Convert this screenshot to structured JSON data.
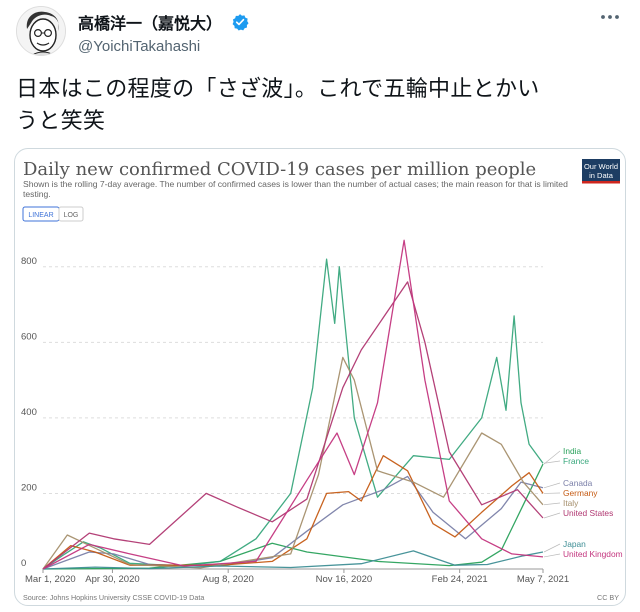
{
  "tweet": {
    "display_name": "高橋洋一（嘉悦大）",
    "handle": "@YoichiTakahashi",
    "text_line1": "日本はこの程度の「さざ波」。これで五輪中止とかい",
    "text_line2": "うと笑笑"
  },
  "icons": {
    "avatar": "caricature-avatar",
    "verified": "verified-badge-icon",
    "more": "more-options-icon"
  },
  "colors": {
    "verified": "#1d9bf0",
    "owid_logo_bg": "#1d3d63",
    "owid_logo_bar": "#ce261e",
    "linear_button": "#3f73d8"
  },
  "chart_data": {
    "type": "line",
    "title": "Daily new confirmed COVID-19 cases per million people",
    "subtitle_line1": "Shown is the rolling 7-day average. The number of confirmed cases is lower than the number of actual cases; the main reason for that is limited",
    "subtitle_line2": "testing.",
    "scale_buttons": [
      "LINEAR",
      "LOG"
    ],
    "active_scale": "LINEAR",
    "logo_line1": "Our World",
    "logo_line2": "in Data",
    "source": "Source: Johns Hopkins University CSSE COVID-19 Data",
    "license": "CC BY",
    "x_tick_labels": [
      "Mar 1, 2020",
      "Apr 30, 2020",
      "Aug 8, 2020",
      "Nov 16, 2020",
      "Feb 24, 2021",
      "May 7, 2021"
    ],
    "y_ticks": [
      0,
      200,
      400,
      600,
      800
    ],
    "ylim": [
      0,
      900
    ],
    "xlim": [
      "2020-03-01",
      "2021-05-07"
    ],
    "grid": true,
    "legend_placement": "right",
    "series": [
      {
        "name": "India",
        "color": "#29a15b",
        "points": [
          [
            "2020-03-01",
            0
          ],
          [
            "2020-06-01",
            2
          ],
          [
            "2020-08-01",
            20
          ],
          [
            "2020-09-15",
            68
          ],
          [
            "2020-10-15",
            45
          ],
          [
            "2020-12-15",
            20
          ],
          [
            "2021-02-15",
            9
          ],
          [
            "2021-03-15",
            18
          ],
          [
            "2021-04-01",
            50
          ],
          [
            "2021-04-20",
            170
          ],
          [
            "2021-05-07",
            278
          ]
        ]
      },
      {
        "name": "France",
        "color": "#38a77c",
        "points": [
          [
            "2020-03-01",
            0
          ],
          [
            "2020-03-20",
            40
          ],
          [
            "2020-04-05",
            72
          ],
          [
            "2020-04-20",
            55
          ],
          [
            "2020-05-15",
            15
          ],
          [
            "2020-07-01",
            8
          ],
          [
            "2020-08-01",
            20
          ],
          [
            "2020-09-01",
            80
          ],
          [
            "2020-10-01",
            200
          ],
          [
            "2020-10-20",
            480
          ],
          [
            "2020-11-01",
            820
          ],
          [
            "2020-11-08",
            650
          ],
          [
            "2020-11-12",
            800
          ],
          [
            "2020-11-25",
            400
          ],
          [
            "2020-12-15",
            190
          ],
          [
            "2021-01-15",
            300
          ],
          [
            "2021-02-15",
            290
          ],
          [
            "2021-03-15",
            400
          ],
          [
            "2021-03-28",
            560
          ],
          [
            "2021-04-05",
            420
          ],
          [
            "2021-04-12",
            670
          ],
          [
            "2021-04-18",
            440
          ],
          [
            "2021-04-25",
            330
          ],
          [
            "2021-05-07",
            280
          ]
        ]
      },
      {
        "name": "Canada",
        "color": "#7a7fa8",
        "points": [
          [
            "2020-03-01",
            0
          ],
          [
            "2020-04-10",
            45
          ],
          [
            "2020-05-01",
            40
          ],
          [
            "2020-06-01",
            12
          ],
          [
            "2020-08-01",
            8
          ],
          [
            "2020-09-15",
            30
          ],
          [
            "2020-10-15",
            100
          ],
          [
            "2020-11-15",
            170
          ],
          [
            "2020-12-20",
            210
          ],
          [
            "2021-01-10",
            245
          ],
          [
            "2021-02-01",
            150
          ],
          [
            "2021-03-01",
            80
          ],
          [
            "2021-04-01",
            160
          ],
          [
            "2021-04-18",
            230
          ],
          [
            "2021-05-07",
            215
          ]
        ]
      },
      {
        "name": "Germany",
        "color": "#c55b14",
        "points": [
          [
            "2020-03-01",
            0
          ],
          [
            "2020-03-25",
            62
          ],
          [
            "2020-04-15",
            45
          ],
          [
            "2020-05-15",
            10
          ],
          [
            "2020-08-01",
            10
          ],
          [
            "2020-09-15",
            20
          ],
          [
            "2020-10-15",
            80
          ],
          [
            "2020-11-01",
            200
          ],
          [
            "2020-11-20",
            205
          ],
          [
            "2020-12-01",
            180
          ],
          [
            "2020-12-20",
            300
          ],
          [
            "2021-01-10",
            260
          ],
          [
            "2021-02-01",
            120
          ],
          [
            "2021-02-20",
            85
          ],
          [
            "2021-03-15",
            150
          ],
          [
            "2021-04-10",
            220
          ],
          [
            "2021-04-25",
            255
          ],
          [
            "2021-05-07",
            200
          ]
        ]
      },
      {
        "name": "Italy",
        "color": "#a58f6c",
        "points": [
          [
            "2020-03-01",
            0
          ],
          [
            "2020-03-22",
            90
          ],
          [
            "2020-04-15",
            55
          ],
          [
            "2020-05-15",
            12
          ],
          [
            "2020-07-15",
            3
          ],
          [
            "2020-08-20",
            20
          ],
          [
            "2020-10-01",
            40
          ],
          [
            "2020-10-25",
            250
          ],
          [
            "2020-11-15",
            560
          ],
          [
            "2020-11-25",
            500
          ],
          [
            "2020-12-15",
            260
          ],
          [
            "2021-01-15",
            230
          ],
          [
            "2021-02-10",
            190
          ],
          [
            "2021-03-15",
            360
          ],
          [
            "2021-04-01",
            330
          ],
          [
            "2021-04-20",
            230
          ],
          [
            "2021-05-07",
            170
          ]
        ]
      },
      {
        "name": "United States",
        "color": "#b03771",
        "points": [
          [
            "2020-03-01",
            0
          ],
          [
            "2020-04-10",
            95
          ],
          [
            "2020-05-01",
            80
          ],
          [
            "2020-06-01",
            65
          ],
          [
            "2020-07-20",
            200
          ],
          [
            "2020-08-15",
            165
          ],
          [
            "2020-09-15",
            125
          ],
          [
            "2020-10-15",
            185
          ],
          [
            "2020-11-15",
            480
          ],
          [
            "2020-12-01",
            580
          ],
          [
            "2021-01-10",
            760
          ],
          [
            "2021-01-25",
            600
          ],
          [
            "2021-02-15",
            310
          ],
          [
            "2021-03-15",
            170
          ],
          [
            "2021-04-15",
            210
          ],
          [
            "2021-05-07",
            135
          ]
        ]
      },
      {
        "name": "Japan",
        "color": "#3e8e95",
        "points": [
          [
            "2020-03-01",
            0
          ],
          [
            "2020-04-15",
            5
          ],
          [
            "2020-06-01",
            1
          ],
          [
            "2020-08-01",
            8
          ],
          [
            "2020-10-01",
            4
          ],
          [
            "2020-12-01",
            14
          ],
          [
            "2021-01-15",
            48
          ],
          [
            "2021-02-20",
            10
          ],
          [
            "2021-03-20",
            12
          ],
          [
            "2021-04-20",
            35
          ],
          [
            "2021-05-07",
            45
          ]
        ]
      },
      {
        "name": "United Kingdom",
        "color": "#c3357e",
        "points": [
          [
            "2020-03-01",
            0
          ],
          [
            "2020-04-10",
            65
          ],
          [
            "2020-05-15",
            40
          ],
          [
            "2020-07-01",
            8
          ],
          [
            "2020-09-01",
            20
          ],
          [
            "2020-10-15",
            235
          ],
          [
            "2020-11-10",
            360
          ],
          [
            "2020-11-25",
            250
          ],
          [
            "2020-12-15",
            440
          ],
          [
            "2021-01-07",
            870
          ],
          [
            "2021-01-25",
            500
          ],
          [
            "2021-02-15",
            180
          ],
          [
            "2021-03-15",
            80
          ],
          [
            "2021-04-10",
            40
          ],
          [
            "2021-05-07",
            32
          ]
        ]
      }
    ]
  }
}
